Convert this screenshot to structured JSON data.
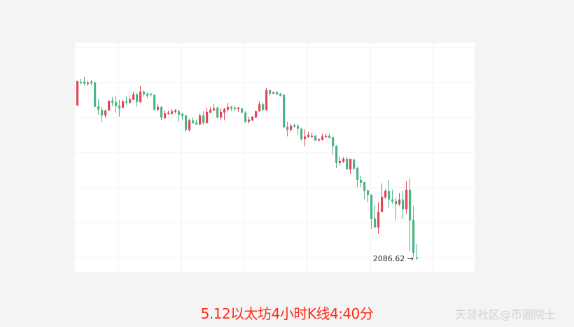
{
  "caption": "5.12以太坊4小时K线4:40分",
  "watermark": "天涯社区@币圈院士",
  "chart_data": {
    "type": "candlestick",
    "title": "",
    "xlabel": "",
    "ylabel": "",
    "grid": true,
    "ylim": [
      2030,
      3010
    ],
    "colors": {
      "up": "#e0475a",
      "down": "#4bb583",
      "grid": "#f0f2f5",
      "background": "#ffffff"
    },
    "last_price_label": "2086.62 →",
    "last_price": 2086.62,
    "candles_ohlc": [
      [
        2741,
        2846,
        2741,
        2846
      ],
      [
        2843,
        2855,
        2831,
        2840
      ],
      [
        2843,
        2864,
        2828,
        2834
      ],
      [
        2834,
        2846,
        2825,
        2840
      ],
      [
        2843,
        2852,
        2828,
        2837
      ],
      [
        2840,
        2846,
        2735,
        2735
      ],
      [
        2738,
        2768,
        2702,
        2723
      ],
      [
        2723,
        2735,
        2669,
        2699
      ],
      [
        2699,
        2723,
        2690,
        2720
      ],
      [
        2720,
        2762,
        2720,
        2762
      ],
      [
        2762,
        2777,
        2738,
        2753
      ],
      [
        2756,
        2783,
        2711,
        2738
      ],
      [
        2741,
        2765,
        2693,
        2729
      ],
      [
        2732,
        2765,
        2729,
        2759
      ],
      [
        2759,
        2780,
        2744,
        2753
      ],
      [
        2753,
        2780,
        2750,
        2768
      ],
      [
        2765,
        2801,
        2765,
        2789
      ],
      [
        2789,
        2795,
        2735,
        2756
      ],
      [
        2756,
        2825,
        2753,
        2801
      ],
      [
        2801,
        2807,
        2780,
        2789
      ],
      [
        2792,
        2798,
        2774,
        2783
      ],
      [
        2792,
        2795,
        2780,
        2786
      ],
      [
        2786,
        2789,
        2720,
        2723
      ],
      [
        2723,
        2750,
        2717,
        2735
      ],
      [
        2735,
        2738,
        2678,
        2690
      ],
      [
        2687,
        2720,
        2684,
        2708
      ],
      [
        2705,
        2720,
        2702,
        2711
      ],
      [
        2705,
        2726,
        2702,
        2717
      ],
      [
        2714,
        2726,
        2708,
        2720
      ],
      [
        2717,
        2723,
        2672,
        2702
      ],
      [
        2705,
        2711,
        2678,
        2696
      ],
      [
        2699,
        2702,
        2630,
        2636
      ],
      [
        2636,
        2684,
        2630,
        2678
      ],
      [
        2678,
        2690,
        2663,
        2666
      ],
      [
        2669,
        2681,
        2660,
        2660
      ],
      [
        2660,
        2705,
        2657,
        2699
      ],
      [
        2699,
        2717,
        2660,
        2666
      ],
      [
        2666,
        2732,
        2663,
        2714
      ],
      [
        2711,
        2732,
        2708,
        2723
      ],
      [
        2720,
        2750,
        2717,
        2729
      ],
      [
        2732,
        2738,
        2687,
        2690
      ],
      [
        2690,
        2732,
        2678,
        2714
      ],
      [
        2711,
        2732,
        2678,
        2726
      ],
      [
        2723,
        2753,
        2717,
        2735
      ],
      [
        2735,
        2741,
        2717,
        2729
      ],
      [
        2732,
        2738,
        2717,
        2726
      ],
      [
        2726,
        2735,
        2714,
        2732
      ],
      [
        2729,
        2732,
        2708,
        2711
      ],
      [
        2711,
        2717,
        2666,
        2672
      ],
      [
        2672,
        2693,
        2663,
        2681
      ],
      [
        2678,
        2696,
        2675,
        2693
      ],
      [
        2690,
        2720,
        2687,
        2717
      ],
      [
        2717,
        2759,
        2714,
        2747
      ],
      [
        2747,
        2756,
        2717,
        2723
      ],
      [
        2723,
        2816,
        2717,
        2807
      ],
      [
        2807,
        2810,
        2783,
        2792
      ],
      [
        2792,
        2801,
        2792,
        2798
      ],
      [
        2798,
        2804,
        2786,
        2789
      ],
      [
        2792,
        2795,
        2780,
        2783
      ],
      [
        2786,
        2792,
        2645,
        2648
      ],
      [
        2651,
        2672,
        2609,
        2636
      ],
      [
        2636,
        2663,
        2630,
        2654
      ],
      [
        2657,
        2663,
        2645,
        2651
      ],
      [
        2654,
        2663,
        2615,
        2642
      ],
      [
        2642,
        2645,
        2591,
        2597
      ],
      [
        2597,
        2639,
        2567,
        2609
      ],
      [
        2606,
        2627,
        2603,
        2615
      ],
      [
        2606,
        2624,
        2603,
        2612
      ],
      [
        2612,
        2615,
        2591,
        2591
      ],
      [
        2591,
        2600,
        2588,
        2597
      ],
      [
        2594,
        2621,
        2591,
        2609
      ],
      [
        2606,
        2621,
        2603,
        2612
      ],
      [
        2612,
        2621,
        2600,
        2603
      ],
      [
        2606,
        2606,
        2531,
        2567
      ],
      [
        2567,
        2573,
        2474,
        2495
      ],
      [
        2495,
        2522,
        2486,
        2504
      ],
      [
        2501,
        2522,
        2495,
        2513
      ],
      [
        2513,
        2522,
        2468,
        2468
      ],
      [
        2468,
        2513,
        2447,
        2513
      ],
      [
        2510,
        2513,
        2465,
        2471
      ],
      [
        2474,
        2480,
        2393,
        2423
      ],
      [
        2423,
        2441,
        2393,
        2411
      ],
      [
        2414,
        2414,
        2339,
        2375
      ],
      [
        2378,
        2381,
        2327,
        2357
      ],
      [
        2357,
        2363,
        2213,
        2255
      ],
      [
        2258,
        2315,
        2219,
        2219
      ],
      [
        2219,
        2327,
        2192,
        2285
      ],
      [
        2285,
        2408,
        2285,
        2351
      ],
      [
        2348,
        2384,
        2342,
        2375
      ],
      [
        2375,
        2423,
        2303,
        2339
      ],
      [
        2339,
        2381,
        2321,
        2330
      ],
      [
        2333,
        2348,
        2249,
        2318
      ],
      [
        2318,
        2366,
        2312,
        2339
      ],
      [
        2339,
        2375,
        2255,
        2297
      ],
      [
        2297,
        2417,
        2276,
        2381
      ],
      [
        2381,
        2429,
        2117,
        2249
      ],
      [
        2252,
        2311,
        2093,
        2111
      ],
      [
        2092,
        2147,
        2081,
        2086.62
      ]
    ]
  }
}
